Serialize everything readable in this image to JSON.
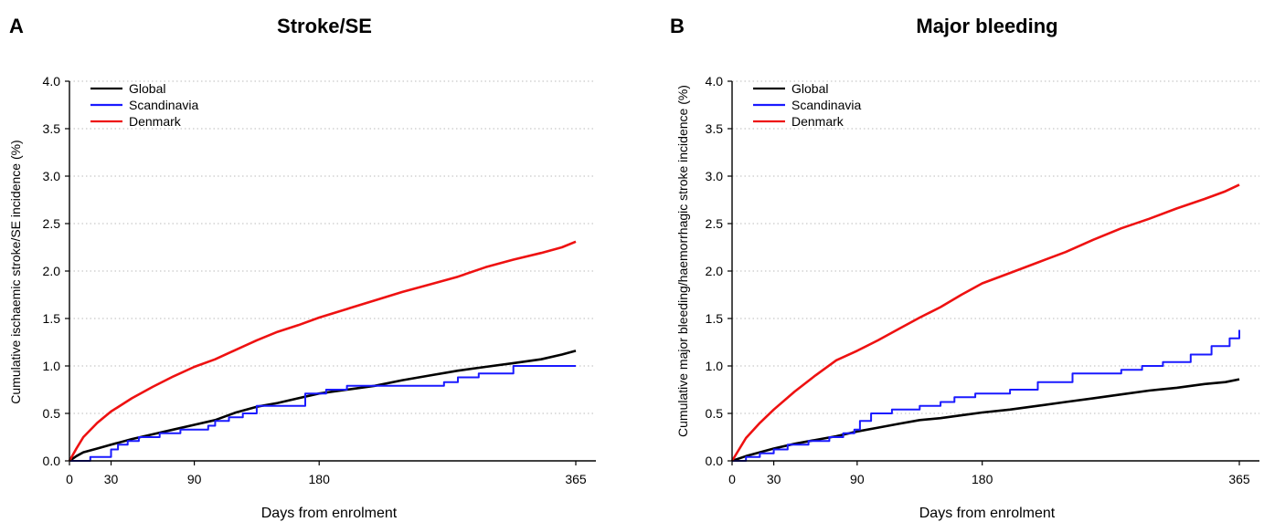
{
  "chart_data": [
    {
      "panel": "A",
      "type": "line",
      "title": "Stroke/SE",
      "xlabel": "Days from enrolment",
      "ylabel": "Cumulative ischaemic stroke/SE incidence (%)",
      "xlim": [
        0,
        365
      ],
      "ylim": [
        0,
        4.0
      ],
      "xticks": [
        0,
        30,
        90,
        180,
        365
      ],
      "yticks": [
        "0.0",
        "0.5",
        "1.0",
        "1.5",
        "2.0",
        "2.5",
        "3.0",
        "3.5",
        "4.0"
      ],
      "grid": "horizontal dotted",
      "legend": "top-left",
      "series": [
        {
          "name": "Global",
          "color": "#000000",
          "step": false,
          "x": [
            0,
            5,
            10,
            20,
            30,
            45,
            60,
            75,
            90,
            105,
            120,
            135,
            150,
            165,
            180,
            200,
            220,
            240,
            260,
            280,
            300,
            320,
            340,
            355,
            365
          ],
          "y": [
            0,
            0.05,
            0.09,
            0.13,
            0.17,
            0.23,
            0.28,
            0.33,
            0.38,
            0.43,
            0.51,
            0.57,
            0.61,
            0.66,
            0.71,
            0.75,
            0.79,
            0.85,
            0.9,
            0.95,
            0.99,
            1.03,
            1.07,
            1.12,
            1.16
          ]
        },
        {
          "name": "Scandinavia",
          "color": "#1a1aff",
          "step": true,
          "x": [
            0,
            15,
            30,
            35,
            42,
            50,
            65,
            80,
            100,
            105,
            115,
            125,
            135,
            150,
            170,
            185,
            200,
            265,
            270,
            280,
            295,
            310,
            320,
            365
          ],
          "y": [
            0,
            0.04,
            0.12,
            0.17,
            0.21,
            0.25,
            0.29,
            0.33,
            0.37,
            0.42,
            0.46,
            0.5,
            0.58,
            0.58,
            0.71,
            0.75,
            0.79,
            0.79,
            0.83,
            0.88,
            0.92,
            0.92,
            1.0,
            1.0
          ]
        },
        {
          "name": "Denmark",
          "color": "#ee1111",
          "step": false,
          "x": [
            0,
            5,
            10,
            20,
            30,
            45,
            60,
            75,
            90,
            105,
            120,
            135,
            150,
            165,
            180,
            200,
            220,
            240,
            260,
            280,
            300,
            320,
            340,
            355,
            365
          ],
          "y": [
            0,
            0.13,
            0.25,
            0.4,
            0.52,
            0.66,
            0.78,
            0.89,
            0.99,
            1.07,
            1.17,
            1.27,
            1.36,
            1.43,
            1.51,
            1.6,
            1.69,
            1.78,
            1.86,
            1.94,
            2.04,
            2.12,
            2.19,
            2.25,
            2.31
          ]
        }
      ]
    },
    {
      "panel": "B",
      "type": "line",
      "title": "Major bleeding",
      "xlabel": "Days from enrolment",
      "ylabel": "Cumulative major bleeding/haemorrhagic stroke incidence (%)",
      "xlim": [
        0,
        365
      ],
      "ylim": [
        0,
        4.0
      ],
      "xticks": [
        0,
        30,
        90,
        180,
        365
      ],
      "yticks": [
        "0.0",
        "0.5",
        "1.0",
        "1.5",
        "2.0",
        "2.5",
        "3.0",
        "3.5",
        "4.0"
      ],
      "grid": "horizontal dotted",
      "legend": "top-left",
      "series": [
        {
          "name": "Global",
          "color": "#000000",
          "step": false,
          "x": [
            0,
            10,
            20,
            30,
            45,
            60,
            75,
            90,
            105,
            120,
            135,
            150,
            165,
            180,
            200,
            220,
            240,
            260,
            280,
            300,
            320,
            340,
            355,
            365
          ],
          "y": [
            0,
            0.05,
            0.09,
            0.13,
            0.18,
            0.22,
            0.26,
            0.31,
            0.35,
            0.39,
            0.43,
            0.45,
            0.48,
            0.51,
            0.54,
            0.58,
            0.62,
            0.66,
            0.7,
            0.74,
            0.77,
            0.81,
            0.83,
            0.86
          ]
        },
        {
          "name": "Scandinavia",
          "color": "#1a1aff",
          "step": true,
          "x": [
            0,
            10,
            20,
            30,
            40,
            55,
            70,
            80,
            88,
            92,
            100,
            115,
            135,
            150,
            160,
            175,
            200,
            220,
            245,
            265,
            280,
            295,
            310,
            330,
            345,
            358,
            365
          ],
          "y": [
            0,
            0.04,
            0.08,
            0.12,
            0.17,
            0.21,
            0.25,
            0.29,
            0.33,
            0.42,
            0.5,
            0.54,
            0.58,
            0.62,
            0.67,
            0.71,
            0.75,
            0.83,
            0.92,
            0.92,
            0.96,
            1.0,
            1.04,
            1.12,
            1.21,
            1.29,
            1.38
          ]
        },
        {
          "name": "Denmark",
          "color": "#ee1111",
          "step": false,
          "x": [
            0,
            5,
            10,
            20,
            30,
            45,
            60,
            75,
            90,
            105,
            120,
            135,
            150,
            165,
            180,
            200,
            220,
            240,
            260,
            280,
            300,
            320,
            340,
            355,
            365
          ],
          "y": [
            0,
            0.12,
            0.24,
            0.4,
            0.54,
            0.73,
            0.9,
            1.06,
            1.16,
            1.27,
            1.39,
            1.51,
            1.62,
            1.75,
            1.87,
            1.98,
            2.09,
            2.2,
            2.33,
            2.45,
            2.55,
            2.66,
            2.76,
            2.84,
            2.91
          ]
        }
      ]
    }
  ]
}
